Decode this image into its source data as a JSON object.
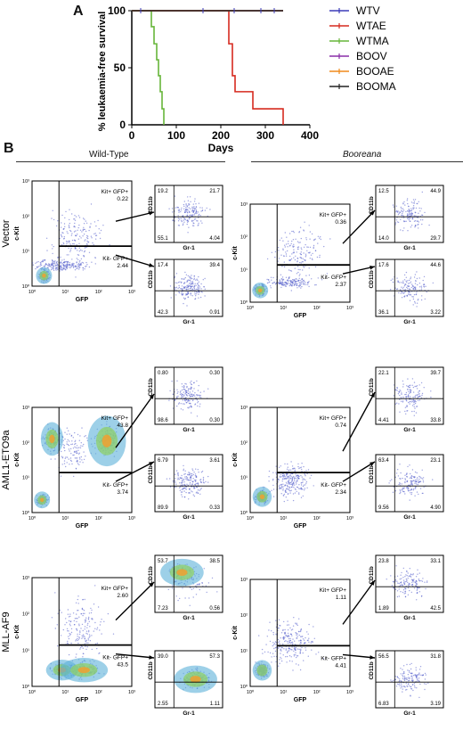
{
  "panel_a": {
    "letter": "A",
    "chart_data": {
      "type": "line",
      "xlabel": "Days",
      "ylabel": "% leukaemia-free survival",
      "xlim": [
        0,
        400
      ],
      "ylim": [
        0,
        100
      ],
      "xticks": [
        0,
        100,
        200,
        300,
        400
      ],
      "yticks": [
        0,
        50,
        100
      ],
      "legend_position": "right",
      "series": [
        {
          "name": "WTV",
          "color": "#3b3bb8",
          "steps": [
            [
              0,
              100
            ],
            [
              340,
              100
            ]
          ]
        },
        {
          "name": "WTAE",
          "color": "#d62a1f",
          "steps": [
            [
              0,
              100
            ],
            [
              218,
              100
            ],
            [
              218,
              71
            ],
            [
              226,
              71
            ],
            [
              226,
              43
            ],
            [
              232,
              43
            ],
            [
              232,
              29
            ],
            [
              272,
              29
            ],
            [
              272,
              14
            ],
            [
              340,
              14
            ],
            [
              340,
              0
            ]
          ]
        },
        {
          "name": "WTMA",
          "color": "#67b63a",
          "steps": [
            [
              0,
              100
            ],
            [
              44,
              100
            ],
            [
              44,
              86
            ],
            [
              50,
              86
            ],
            [
              50,
              71
            ],
            [
              56,
              71
            ],
            [
              56,
              57
            ],
            [
              60,
              57
            ],
            [
              60,
              43
            ],
            [
              64,
              43
            ],
            [
              64,
              29
            ],
            [
              68,
              29
            ],
            [
              68,
              14
            ],
            [
              72,
              14
            ],
            [
              72,
              0
            ]
          ]
        },
        {
          "name": "BOOV",
          "color": "#8a2ea8",
          "steps": [
            [
              0,
              100
            ],
            [
              340,
              100
            ]
          ]
        },
        {
          "name": "BOOAE",
          "color": "#f08a1c",
          "steps": [
            [
              0,
              100
            ],
            [
              340,
              100
            ]
          ]
        },
        {
          "name": "BOOMA",
          "color": "#222222",
          "steps": [
            [
              0,
              100
            ],
            [
              340,
              100
            ]
          ]
        }
      ]
    }
  },
  "panel_b": {
    "letter": "B",
    "group_left": "Wild-Type",
    "group_right": "Booreana",
    "rows": [
      {
        "label": "Vector",
        "wt": {
          "kit_gfp_pos": "Kit+ GFP+",
          "kit_gfp_pos_val": "0.22",
          "kit_neg": "Kit- GFP+",
          "kit_neg_val": "2.44",
          "top_q": [
            "19.2",
            "21.7",
            "55.1",
            "4.04"
          ],
          "bot_q": [
            "17.4",
            "39.4",
            "42.3",
            "0.91"
          ]
        },
        "boo": {
          "kit_gfp_pos": "Kit+ GFP+",
          "kit_gfp_pos_val": "0.36",
          "kit_neg": "Kit- GFP+",
          "kit_neg_val": "2.37",
          "top_q": [
            "12.5",
            "44.9",
            "14.0",
            "29.7"
          ],
          "bot_q": [
            "17.6",
            "44.6",
            "36.1",
            "3.22"
          ]
        }
      },
      {
        "label": "AML1-ETO9a",
        "wt": {
          "kit_gfp_pos": "Kit+ GFP+",
          "kit_gfp_pos_val": "43.8",
          "kit_neg": "Kit- GFP+",
          "kit_neg_val": "3.74",
          "top_q": [
            "0.80",
            "0.30",
            "98.6",
            "0.30"
          ],
          "bot_q": [
            "6.79",
            "3.61",
            "89.9",
            "0.33"
          ]
        },
        "boo": {
          "kit_gfp_pos": "Kit+ GFP+",
          "kit_gfp_pos_val": "0.74",
          "kit_neg": "Kit- GFP+",
          "kit_neg_val": "2.34",
          "top_q": [
            "22.1",
            "39.7",
            "4.41",
            "33.8"
          ],
          "bot_q": [
            "63.4",
            "23.1",
            "9.56",
            "4.90"
          ]
        }
      },
      {
        "label": "MLL-AF9",
        "wt": {
          "kit_gfp_pos": "Kit+ GFP+",
          "kit_gfp_pos_val": "2.60",
          "kit_neg": "Kit- GFP+",
          "kit_neg_val": "43.5",
          "top_q": [
            "53.7",
            "38.5",
            "7.23",
            "0.56"
          ],
          "bot_q": [
            "39.0",
            "57.3",
            "2.55",
            "1.11"
          ]
        },
        "boo": {
          "kit_gfp_pos": "Kit+ GFP+",
          "kit_gfp_pos_val": "1.11",
          "kit_neg": "Kit- GFP+",
          "kit_neg_val": "4.41",
          "top_q": [
            "23.8",
            "33.1",
            "1.89",
            "42.5"
          ],
          "bot_q": [
            "56.5",
            "31.8",
            "6.83",
            "3.19"
          ]
        }
      }
    ],
    "axis": {
      "ckit": "c-Kit",
      "gfp": "GFP",
      "cd11b": "CD11b",
      "gr1": "Gr-1",
      "decades": [
        "10⁰",
        "10¹",
        "10²",
        "10³"
      ]
    }
  }
}
